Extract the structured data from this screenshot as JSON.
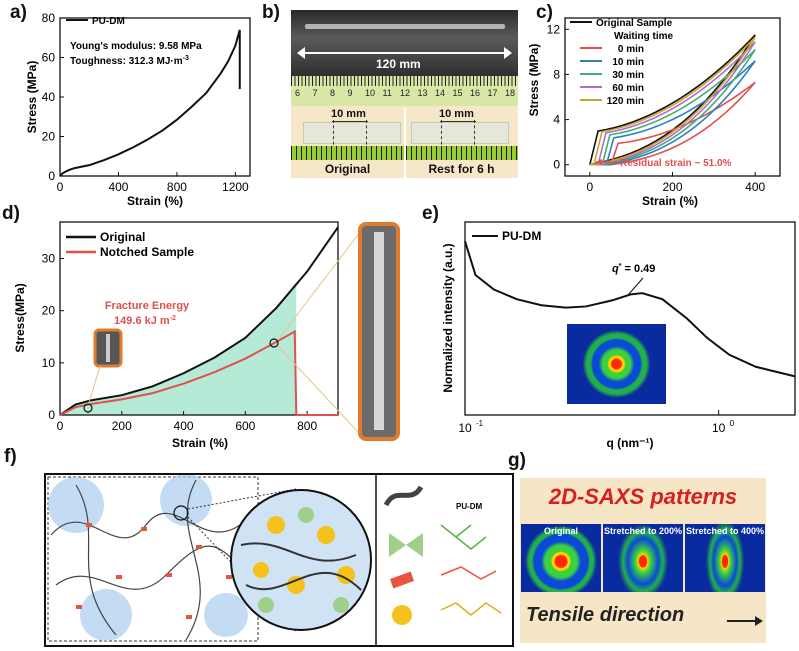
{
  "panel_labels": {
    "a": "a)",
    "b": "b)",
    "c": "c)",
    "d": "d)",
    "e": "e)",
    "f": "f)",
    "g": "g)"
  },
  "a": {
    "legend": "PU-DM",
    "youngs": "Young's modulus: 9.58 MPa",
    "toughness": "Toughness: 312.3 MJ·m",
    "toughness_sup": "-3",
    "xlabel": "Strain (%)",
    "ylabel": "Stress (MPa)"
  },
  "b": {
    "length_label": "120 mm",
    "ruler_nums": [
      "6",
      "7",
      "8",
      "9",
      "10",
      "11",
      "12",
      "13",
      "14",
      "15",
      "16",
      "17",
      "18"
    ],
    "gauge_left": "10 mm",
    "gauge_right": "10 mm",
    "caption_left": "Original",
    "caption_right": "Rest for 6 h"
  },
  "c": {
    "legend_title": "Original Sample",
    "legend_sub": "Waiting time",
    "annotation": "Residual strain ~ 51.0%",
    "xlabel": "Strain (%)",
    "ylabel": "Stress (MPa)"
  },
  "d": {
    "legend": [
      "Original",
      "Notched Sample"
    ],
    "fracture_title": "Fracture Energy",
    "fracture_value": "149.6 kJ m",
    "fracture_sup": "-2",
    "xlabel": "Strain (%)",
    "ylabel": "Stress(MPa)"
  },
  "e": {
    "legend": "PU-DM",
    "q_label": "q",
    "q_value": " = 0.49",
    "xlabel": "q (nm⁻¹)",
    "ylabel": "Normalized intensity (a.u.)"
  },
  "f": {
    "legend_title": "PU-DM"
  },
  "g": {
    "title": "2D-SAXS patterns",
    "captions": [
      "Original",
      "Stretched to 200%",
      "Stretched to 400%"
    ],
    "direction": "Tensile direction"
  },
  "colors": {
    "red": "#e0504e",
    "black": "#111111",
    "teal_fill": "#a8e6cf",
    "orange_frame": "#e07b2e",
    "beige": "#f6e6c8"
  },
  "chart_data": [
    {
      "id": "a",
      "type": "line",
      "xlabel": "Strain (%)",
      "ylabel": "Stress (MPa)",
      "xlim": [
        0,
        1300
      ],
      "ylim": [
        0,
        80
      ],
      "xticks": [
        0,
        400,
        800,
        1200
      ],
      "yticks": [
        0,
        20,
        40,
        60,
        80
      ],
      "series": [
        {
          "name": "PU-DM",
          "color": "#111111",
          "x": [
            0,
            20,
            60,
            100,
            200,
            300,
            400,
            500,
            600,
            700,
            800,
            900,
            1000,
            1100,
            1150,
            1200,
            1230,
            1230
          ],
          "y": [
            0,
            1.5,
            3,
            4,
            5.5,
            8,
            11,
            14.5,
            18.5,
            23,
            28.5,
            35,
            42,
            52,
            58,
            66,
            74,
            44
          ]
        }
      ]
    },
    {
      "id": "c",
      "type": "line",
      "xlabel": "Strain (%)",
      "ylabel": "Stress (MPa)",
      "xlim": [
        -60,
        460
      ],
      "ylim": [
        -1,
        13
      ],
      "xticks": [
        0,
        200,
        400
      ],
      "yticks": [
        0,
        4,
        8,
        12
      ],
      "series": [
        {
          "name": "Original Sample",
          "color": "#111111",
          "peak": 11.5,
          "residual": 0
        },
        {
          "name": "0 min",
          "color": "#e0504e",
          "peak": 7.3,
          "residual": 51
        },
        {
          "name": "10 min",
          "color": "#2e7fc2",
          "peak": 9.2,
          "residual": 40
        },
        {
          "name": "30 min",
          "color": "#3fae73",
          "peak": 10.2,
          "residual": 30
        },
        {
          "name": "60 min",
          "color": "#b36ad6",
          "peak": 10.9,
          "residual": 20
        },
        {
          "name": "120 min",
          "color": "#c8a62a",
          "peak": 11.3,
          "residual": 10
        }
      ]
    },
    {
      "id": "d",
      "type": "line",
      "xlabel": "Strain (%)",
      "ylabel": "Stress(MPa)",
      "xlim": [
        0,
        900
      ],
      "ylim": [
        0,
        37
      ],
      "xticks": [
        0,
        200,
        400,
        600,
        800
      ],
      "yticks": [
        0,
        10,
        20,
        30
      ],
      "series": [
        {
          "name": "Original",
          "color": "#111111",
          "x": [
            0,
            50,
            100,
            200,
            300,
            400,
            500,
            600,
            700,
            800,
            900
          ],
          "y": [
            0,
            2,
            2.8,
            3.8,
            5.5,
            8,
            11,
            14.8,
            20.5,
            27.5,
            36
          ]
        },
        {
          "name": "Notched Sample",
          "color": "#e0504e",
          "x": [
            0,
            50,
            100,
            200,
            300,
            400,
            500,
            600,
            700,
            760,
            765,
            900
          ],
          "y": [
            0,
            1.5,
            2.1,
            3,
            4.2,
            6,
            8.2,
            10.8,
            14,
            16,
            0,
            0
          ]
        }
      ]
    },
    {
      "id": "e",
      "type": "line",
      "xlabel": "q (nm⁻¹)",
      "ylabel": "Normalized intensity (a.u.)",
      "xscale": "log",
      "xlim": [
        0.1,
        2
      ],
      "xticks": [
        "10^-1",
        "10^0"
      ],
      "series": [
        {
          "name": "PU-DM",
          "color": "#111111",
          "x": [
            0.1,
            0.11,
            0.13,
            0.16,
            0.2,
            0.25,
            0.3,
            0.38,
            0.45,
            0.5,
            0.6,
            0.75,
            0.9,
            1.1,
            1.4,
            2.0
          ],
          "y": [
            0.92,
            0.78,
            0.72,
            0.68,
            0.655,
            0.645,
            0.65,
            0.675,
            0.7,
            0.705,
            0.68,
            0.6,
            0.52,
            0.45,
            0.4,
            0.36
          ]
        }
      ]
    }
  ]
}
